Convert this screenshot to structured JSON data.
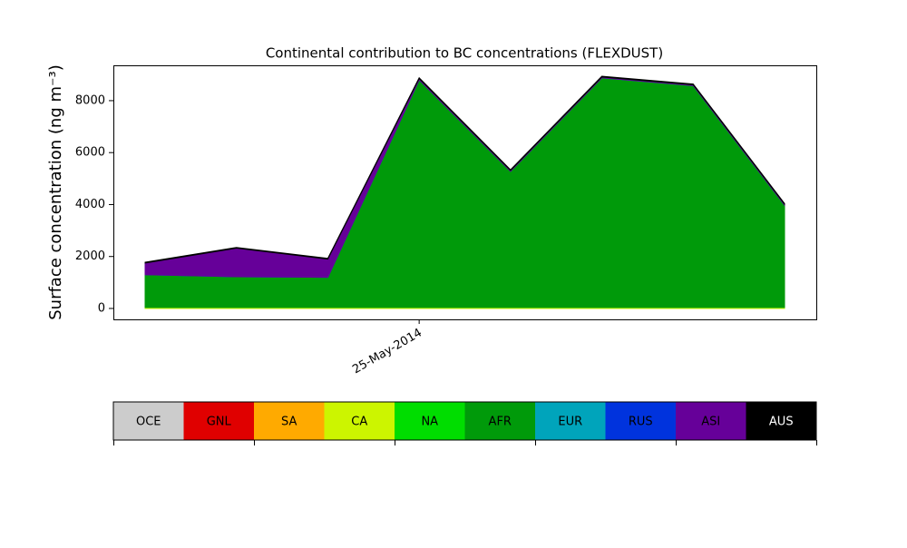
{
  "chart_data": {
    "type": "stacked_area",
    "title": "Continental contribution to BC concentrations (FLEXDUST)",
    "y_label": "Surface concentration (ng m⁻³)",
    "categories": [
      null,
      null,
      null,
      "25-May-2014",
      null,
      null,
      null,
      null
    ],
    "series": [
      {
        "name": "OCE",
        "color": "#cccccc",
        "values": [
          0,
          0,
          0,
          0,
          0,
          0,
          0,
          0
        ]
      },
      {
        "name": "GNL",
        "color": "#e00000",
        "values": [
          0,
          0,
          0,
          0,
          0,
          0,
          0,
          0
        ]
      },
      {
        "name": "SA",
        "color": "#ffaa00",
        "values": [
          0,
          0,
          0,
          0,
          0,
          0,
          0,
          0
        ]
      },
      {
        "name": "CA",
        "color": "#ccf500",
        "values": [
          40,
          40,
          40,
          40,
          40,
          40,
          40,
          40
        ]
      },
      {
        "name": "NA",
        "color": "#00dd00",
        "values": [
          0,
          0,
          0,
          0,
          0,
          0,
          0,
          0
        ]
      },
      {
        "name": "AFR",
        "color": "#009a0a",
        "values": [
          1260,
          1180,
          1160,
          8760,
          5240,
          8840,
          8540,
          3940
        ]
      },
      {
        "name": "EUR",
        "color": "#00a4bb",
        "values": [
          0,
          0,
          0,
          0,
          0,
          0,
          0,
          0
        ]
      },
      {
        "name": "RUS",
        "color": "#0033dd",
        "values": [
          0,
          0,
          0,
          0,
          0,
          0,
          0,
          0
        ]
      },
      {
        "name": "ASI",
        "color": "#660099",
        "values": [
          450,
          1100,
          700,
          50,
          30,
          30,
          30,
          30
        ]
      },
      {
        "name": "AUS",
        "color": "#000000",
        "values": [
          30,
          30,
          30,
          30,
          30,
          30,
          30,
          30
        ]
      }
    ],
    "ylim": [
      -420,
      9360
    ],
    "yticks": [
      0,
      2000,
      4000,
      6000,
      8000
    ]
  }
}
